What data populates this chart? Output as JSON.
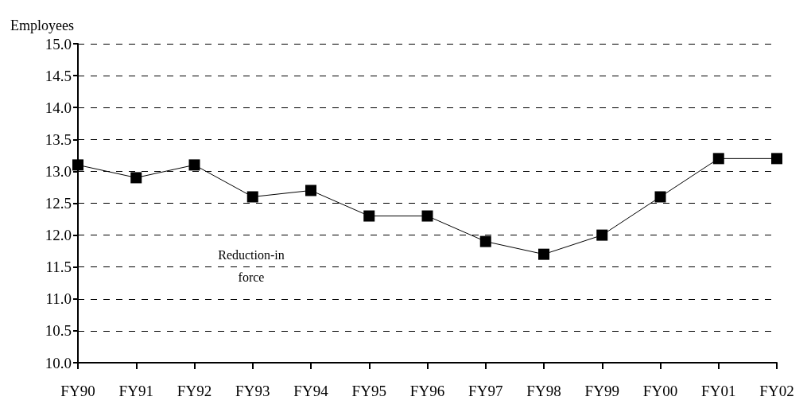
{
  "chart_data": {
    "type": "line",
    "ylabel": "Employees",
    "categories": [
      "FY90",
      "FY91",
      "FY92",
      "FY93",
      "FY94",
      "FY95",
      "FY96",
      "FY97",
      "FY98",
      "FY99",
      "FY00",
      "FY01",
      "FY02"
    ],
    "series": [
      {
        "color": "#000000",
        "values": [
          13.1,
          12.9,
          13.1,
          12.6,
          12.7,
          12.3,
          12.3,
          11.9,
          11.7,
          12.0,
          12.6,
          13.2,
          13.2
        ]
      }
    ],
    "ylim": [
      10,
      15
    ],
    "yticks": [
      {
        "value": 10,
        "label": "10.0"
      },
      {
        "value": 10.5,
        "label": "10.5"
      },
      {
        "value": 11,
        "label": "11.0"
      },
      {
        "value": 11.5,
        "label": "11.5"
      },
      {
        "value": 12,
        "label": "12.0"
      },
      {
        "value": 12.5,
        "label": "12.5"
      },
      {
        "value": 13,
        "label": "13.0"
      },
      {
        "value": 13.5,
        "label": "13.5"
      },
      {
        "value": 14,
        "label": "14.0"
      },
      {
        "value": 14.5,
        "label": "14.5"
      },
      {
        "value": 15,
        "label": "15.0"
      }
    ],
    "grid": "y",
    "marker": "square",
    "line_style": "solid",
    "annotations": [
      "Reduction-in\nforce"
    ]
  }
}
